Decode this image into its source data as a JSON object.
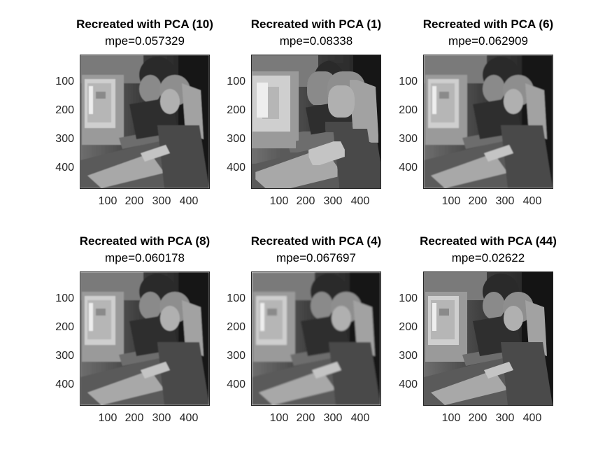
{
  "figure": {
    "panels": [
      {
        "title": "Recreated with PCA (10)",
        "subtitle": "mpe=0.057329",
        "blur": 0.6,
        "pixelated": false
      },
      {
        "title": "Recreated with PCA (1)",
        "subtitle": "mpe=0.08338",
        "blur": 0,
        "pixelated": true
      },
      {
        "title": "Recreated with PCA (6)",
        "subtitle": "mpe=0.062909",
        "blur": 0.8,
        "pixelated": false
      },
      {
        "title": "Recreated with PCA (8)",
        "subtitle": "mpe=0.060178",
        "blur": 0.7,
        "pixelated": false
      },
      {
        "title": "Recreated with PCA (4)",
        "subtitle": "mpe=0.067697",
        "blur": 1.0,
        "pixelated": false
      },
      {
        "title": "Recreated with PCA (44)",
        "subtitle": "mpe=0.02622",
        "blur": 0,
        "pixelated": false
      }
    ],
    "y_ticks": [
      "100",
      "200",
      "300",
      "400"
    ],
    "x_ticks": [
      "100",
      "200",
      "300",
      "400"
    ],
    "colors": {
      "background": "#ffffff",
      "text": "#000000",
      "axis": "#262626"
    }
  }
}
